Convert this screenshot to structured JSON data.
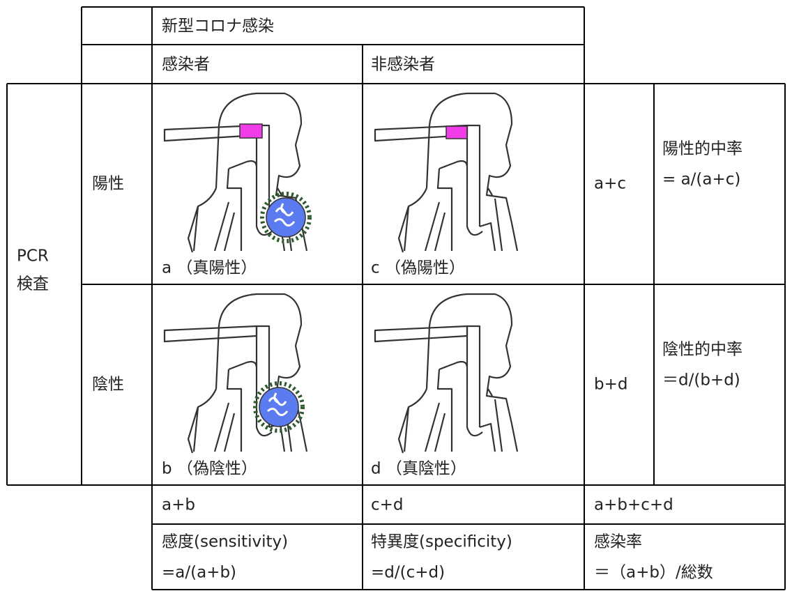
{
  "header": {
    "title": "新型コロナ感染",
    "infected": "感染者",
    "uninfected": "非感染者"
  },
  "test_label": [
    "PCR",
    "検査"
  ],
  "rows": [
    {
      "label": "陽性",
      "cells": [
        "a （真陽性）",
        "c （偽陽性）"
      ],
      "total": "a+c",
      "metric": [
        "陽性的中率",
        "= a/(a+c)"
      ]
    },
    {
      "label": "陰性",
      "cells": [
        "b （偽陰性）",
        "d （真陰性）"
      ],
      "total": "b+d",
      "metric": [
        "陰性的中率",
        "＝d/(b+d)"
      ]
    }
  ],
  "footer": {
    "totals": [
      "a+b",
      "c+d",
      "a+b+c+d"
    ],
    "metrics": [
      [
        "感度(sensitivity)",
        "=a/(a+b)"
      ],
      [
        "特異度(specificity)",
        "=d/(c+d)"
      ],
      [
        "感染率",
        "＝（a+b）/総数"
      ]
    ]
  }
}
